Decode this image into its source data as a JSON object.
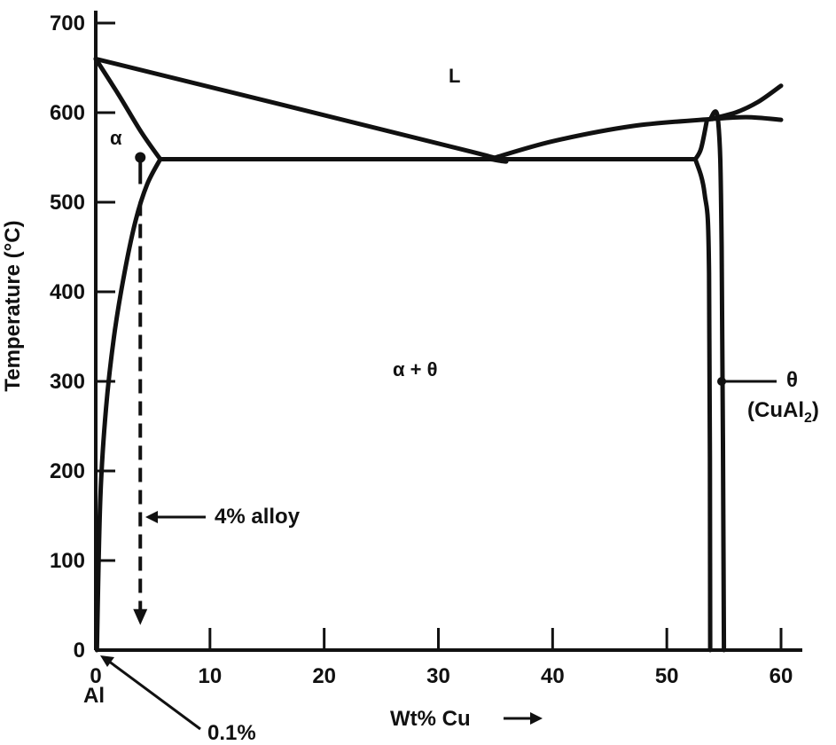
{
  "chart_data": {
    "type": "line",
    "xlabel": "Wt% Cu",
    "ylabel": "Temperature (°C)",
    "xlim": [
      0,
      60
    ],
    "ylim": [
      0,
      700
    ],
    "x_ticks": [
      0,
      10,
      20,
      30,
      40,
      50,
      60
    ],
    "y_ticks": [
      0,
      100,
      200,
      300,
      400,
      500,
      600,
      700
    ],
    "x_tick_labels": [
      "0",
      "10",
      "20",
      "30",
      "40",
      "50",
      "60"
    ],
    "y_tick_labels": [
      "0",
      "100",
      "200",
      "300",
      "400",
      "500",
      "600",
      "700"
    ],
    "grid": false,
    "series": [
      {
        "id": "liquidus-al-side",
        "x": [
          0,
          33,
          34.5
        ],
        "y": [
          660,
          556,
          548
        ]
      },
      {
        "id": "liquidus-theta-side",
        "x": [
          34.5,
          40,
          47,
          54
        ],
        "y": [
          548,
          568,
          585,
          593
        ]
      },
      {
        "id": "solidus-alpha",
        "x": [
          0,
          2,
          4,
          5.65
        ],
        "y": [
          660,
          620,
          578,
          548
        ]
      },
      {
        "id": "solvus-alpha",
        "x": [
          5.65,
          4.5,
          3.5,
          2.5,
          1.6,
          0.9,
          0.4,
          0.1
        ],
        "y": [
          548,
          520,
          480,
          420,
          350,
          270,
          170,
          0
        ]
      },
      {
        "id": "eutectic-isotherm",
        "x": [
          5.65,
          52.5
        ],
        "y": [
          548,
          548
        ]
      },
      {
        "id": "theta-left-upper",
        "x": [
          52.5,
          53.0,
          53.5
        ],
        "y": [
          548,
          560,
          591
        ]
      },
      {
        "id": "theta-left-lower",
        "x": [
          52.5,
          53.3,
          53.7,
          53.8
        ],
        "y": [
          548,
          510,
          420,
          0
        ]
      },
      {
        "id": "theta-right",
        "x": [
          53.8,
          54.5,
          54.8,
          55
        ],
        "y": [
          593,
          590,
          450,
          0
        ]
      },
      {
        "id": "liquidus-upper",
        "x": [
          53.8,
          56,
          58,
          60
        ],
        "y": [
          593,
          600,
          612,
          630
        ]
      },
      {
        "id": "theta-peritectic-line",
        "x": [
          54,
          57,
          60
        ],
        "y": [
          593,
          595,
          592
        ]
      },
      {
        "id": "alloy-path",
        "x": [
          3.9,
          3.9
        ],
        "y": [
          550,
          30
        ]
      }
    ],
    "annotations": {
      "liquid": "L",
      "alpha": "α",
      "alpha_theta": "α + θ",
      "theta": "θ",
      "theta_formula": "(CuAl",
      "theta_formula_sub": "2",
      "theta_formula_end": ")",
      "alloy": "4% alloy",
      "al": "Al",
      "solubility": "0.1%",
      "xlabel_arrow": "→"
    }
  }
}
